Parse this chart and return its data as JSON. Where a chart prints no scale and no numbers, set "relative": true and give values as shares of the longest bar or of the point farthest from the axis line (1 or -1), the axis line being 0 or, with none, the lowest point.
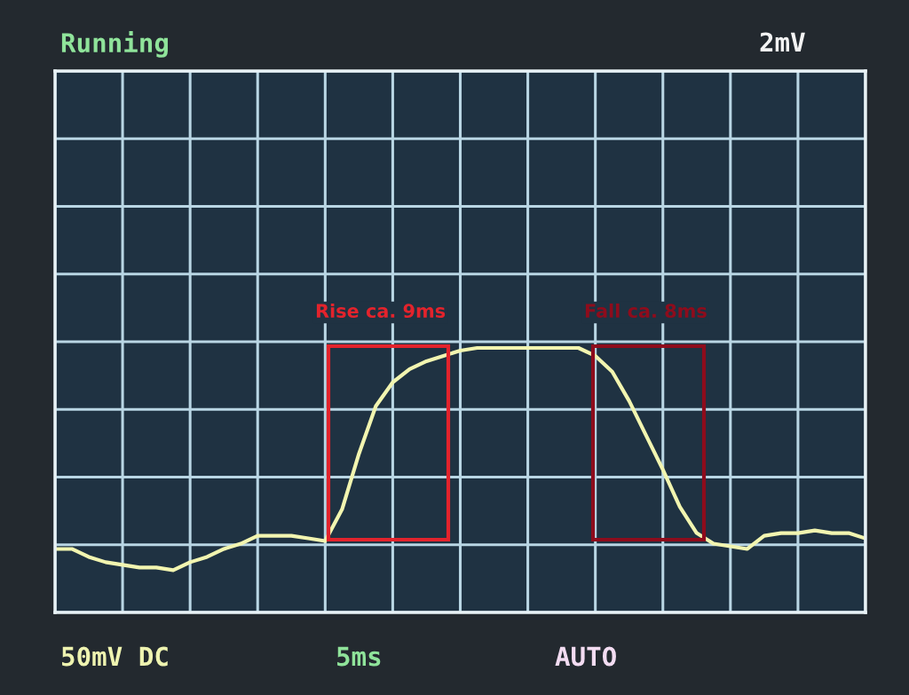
{
  "chart_data": {
    "type": "line",
    "title": "Running",
    "relative": true,
    "grid": true,
    "legend": false,
    "marker": "none",
    "line_style": "solid",
    "categories": [
      null,
      null,
      null,
      null,
      null,
      null,
      null,
      null,
      null,
      null,
      null,
      null,
      null,
      null,
      null,
      null,
      null,
      null,
      null,
      null,
      null,
      null,
      null,
      null,
      null,
      null,
      null,
      null,
      null,
      null,
      null,
      null,
      null,
      null,
      null,
      null,
      null,
      null,
      null,
      null,
      null,
      null,
      null,
      null,
      null,
      null,
      null,
      null,
      null
    ],
    "series": [
      {
        "color": "#f2f5b0",
        "values": [
          0.24,
          0.24,
          0.21,
          0.19,
          0.18,
          0.17,
          0.17,
          0.16,
          0.19,
          0.21,
          0.24,
          0.26,
          0.29,
          0.29,
          0.29,
          0.28,
          0.27,
          0.39,
          0.6,
          0.78,
          0.87,
          0.92,
          0.95,
          0.97,
          0.99,
          1.0,
          1.0,
          1.0,
          1.0,
          1.0,
          1.0,
          1.0,
          0.97,
          0.91,
          0.8,
          0.67,
          0.54,
          0.4,
          0.3,
          0.26,
          0.25,
          0.24,
          0.29,
          0.3,
          0.3,
          0.31,
          0.3,
          0.3,
          0.28
        ]
      }
    ],
    "annotations": [
      "2mV",
      "50mV DC",
      "5ms",
      "AUTO",
      "Rise ca. 9ms",
      "Fall ca. 8ms"
    ]
  }
}
